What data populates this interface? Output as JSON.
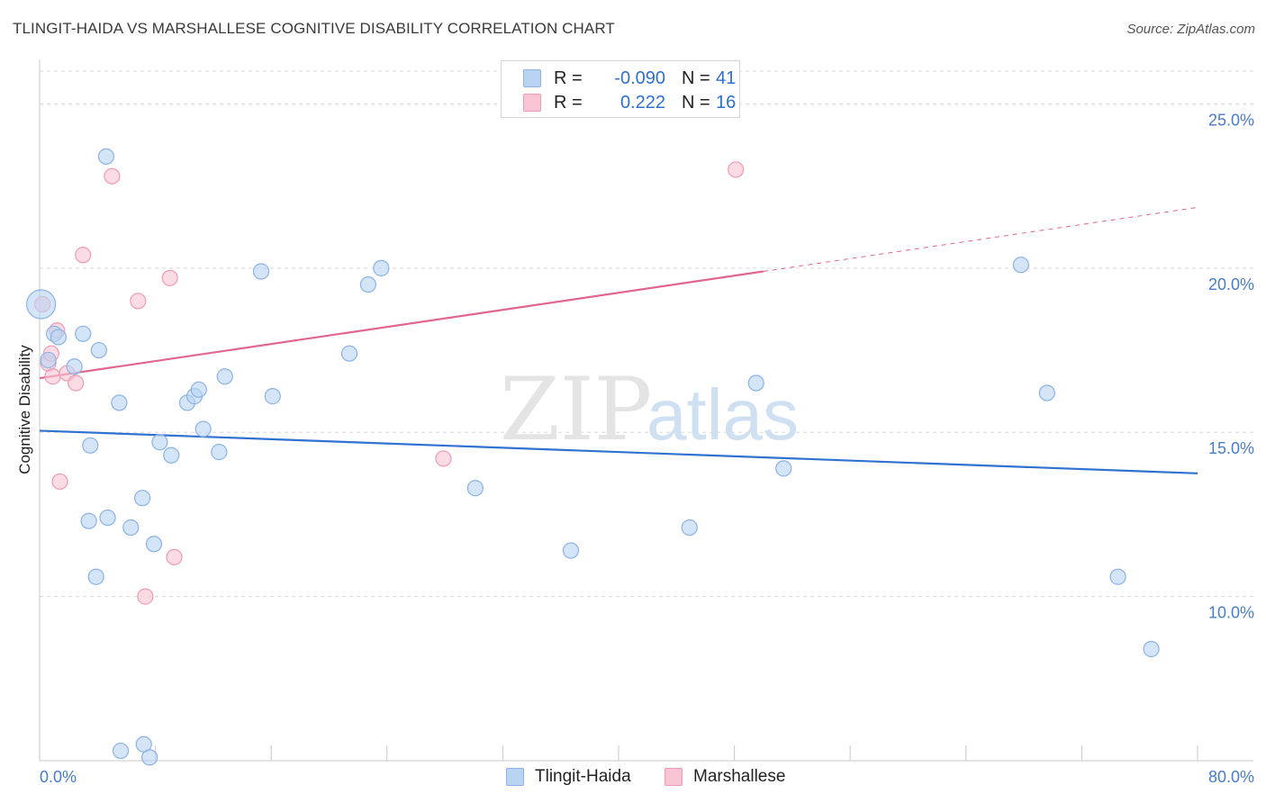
{
  "title": "TLINGIT-HAIDA VS MARSHALLESE COGNITIVE DISABILITY CORRELATION CHART",
  "source": "Source: ZipAtlas.com",
  "watermark": {
    "part1": "ZIP",
    "part2": "atlas"
  },
  "colors": {
    "blue_fill": "#b9d3f3",
    "blue_stroke": "#8ab2e6",
    "blue_line": "#2f72d0",
    "pink_fill": "#f9c5d4",
    "pink_stroke": "#ef9ab4",
    "pink_line": "#e0668f",
    "grid": "#d9d9d9",
    "axis_text": "#4a7cc8"
  },
  "legend": {
    "rows": [
      {
        "r_label": "R =",
        "r_value": "-0.090",
        "n_label": "N =",
        "n_value": "41"
      },
      {
        "r_label": "R =",
        "r_value": "0.222",
        "n_label": "N =",
        "n_value": "16"
      }
    ]
  },
  "chart_data": {
    "type": "scatter",
    "title": "TLINGIT-HAIDA VS MARSHALLESE COGNITIVE DISABILITY CORRELATION CHART",
    "xlabel": "",
    "ylabel": "Cognitive Disability",
    "xlim": [
      0,
      80
    ],
    "ylim": [
      5,
      26
    ],
    "x_tick_labels": {
      "min": "0.0%",
      "max": "80.0%"
    },
    "y_ticks": [
      {
        "value": 10,
        "label": "10.0%"
      },
      {
        "value": 15,
        "label": "15.0%"
      },
      {
        "value": 20,
        "label": "20.0%"
      },
      {
        "value": 25,
        "label": "25.0%"
      }
    ],
    "series": [
      {
        "name": "Tlingit-Haida",
        "color": "blue",
        "R": -0.09,
        "N": 41,
        "trend": {
          "x0": 0,
          "y0": 15.05,
          "x1": 80,
          "y1": 13.75
        },
        "points": [
          [
            0.1,
            18.9,
            "big"
          ],
          [
            0.6,
            17.2
          ],
          [
            1.0,
            18.0
          ],
          [
            1.3,
            17.9
          ],
          [
            2.4,
            17.0
          ],
          [
            3.0,
            18.0
          ],
          [
            3.4,
            12.3
          ],
          [
            3.9,
            10.6
          ],
          [
            3.5,
            14.6
          ],
          [
            4.1,
            17.5
          ],
          [
            4.7,
            12.4
          ],
          [
            5.5,
            15.9
          ],
          [
            4.6,
            23.4
          ],
          [
            6.3,
            12.1
          ],
          [
            7.1,
            13.0
          ],
          [
            7.9,
            11.6
          ],
          [
            8.3,
            14.7
          ],
          [
            9.1,
            14.3
          ],
          [
            10.2,
            15.9
          ],
          [
            10.7,
            16.1
          ],
          [
            11.0,
            16.3
          ],
          [
            11.3,
            15.1
          ],
          [
            12.4,
            14.4
          ],
          [
            12.8,
            16.7
          ],
          [
            15.3,
            19.9
          ],
          [
            16.1,
            16.1
          ],
          [
            21.4,
            17.4
          ],
          [
            22.7,
            19.5
          ],
          [
            23.6,
            20.0
          ],
          [
            30.1,
            13.3
          ],
          [
            36.7,
            11.4
          ],
          [
            44.9,
            12.1
          ],
          [
            49.5,
            16.5
          ],
          [
            51.4,
            13.9
          ],
          [
            67.8,
            20.1
          ],
          [
            69.6,
            16.2
          ],
          [
            74.5,
            10.6
          ],
          [
            76.8,
            8.4
          ],
          [
            5.6,
            5.3
          ],
          [
            7.2,
            5.5
          ],
          [
            7.6,
            5.1
          ]
        ]
      },
      {
        "name": "Marshallese",
        "color": "pink",
        "R": 0.222,
        "N": 16,
        "trend": {
          "x0": 0,
          "y0": 16.65,
          "x1": 50,
          "y1": 19.9,
          "x_dash_end": 80,
          "y_dash_end": 21.85
        },
        "points": [
          [
            0.2,
            18.9
          ],
          [
            0.6,
            17.1
          ],
          [
            0.8,
            17.4
          ],
          [
            0.9,
            16.7
          ],
          [
            1.2,
            18.1
          ],
          [
            1.4,
            13.5
          ],
          [
            1.9,
            16.8
          ],
          [
            2.5,
            16.5
          ],
          [
            3.0,
            20.4
          ],
          [
            5.0,
            22.8
          ],
          [
            6.8,
            19.0
          ],
          [
            7.3,
            10.0
          ],
          [
            9.0,
            19.7
          ],
          [
            9.3,
            11.2
          ],
          [
            27.9,
            14.2
          ],
          [
            48.1,
            23.0
          ]
        ]
      }
    ]
  }
}
